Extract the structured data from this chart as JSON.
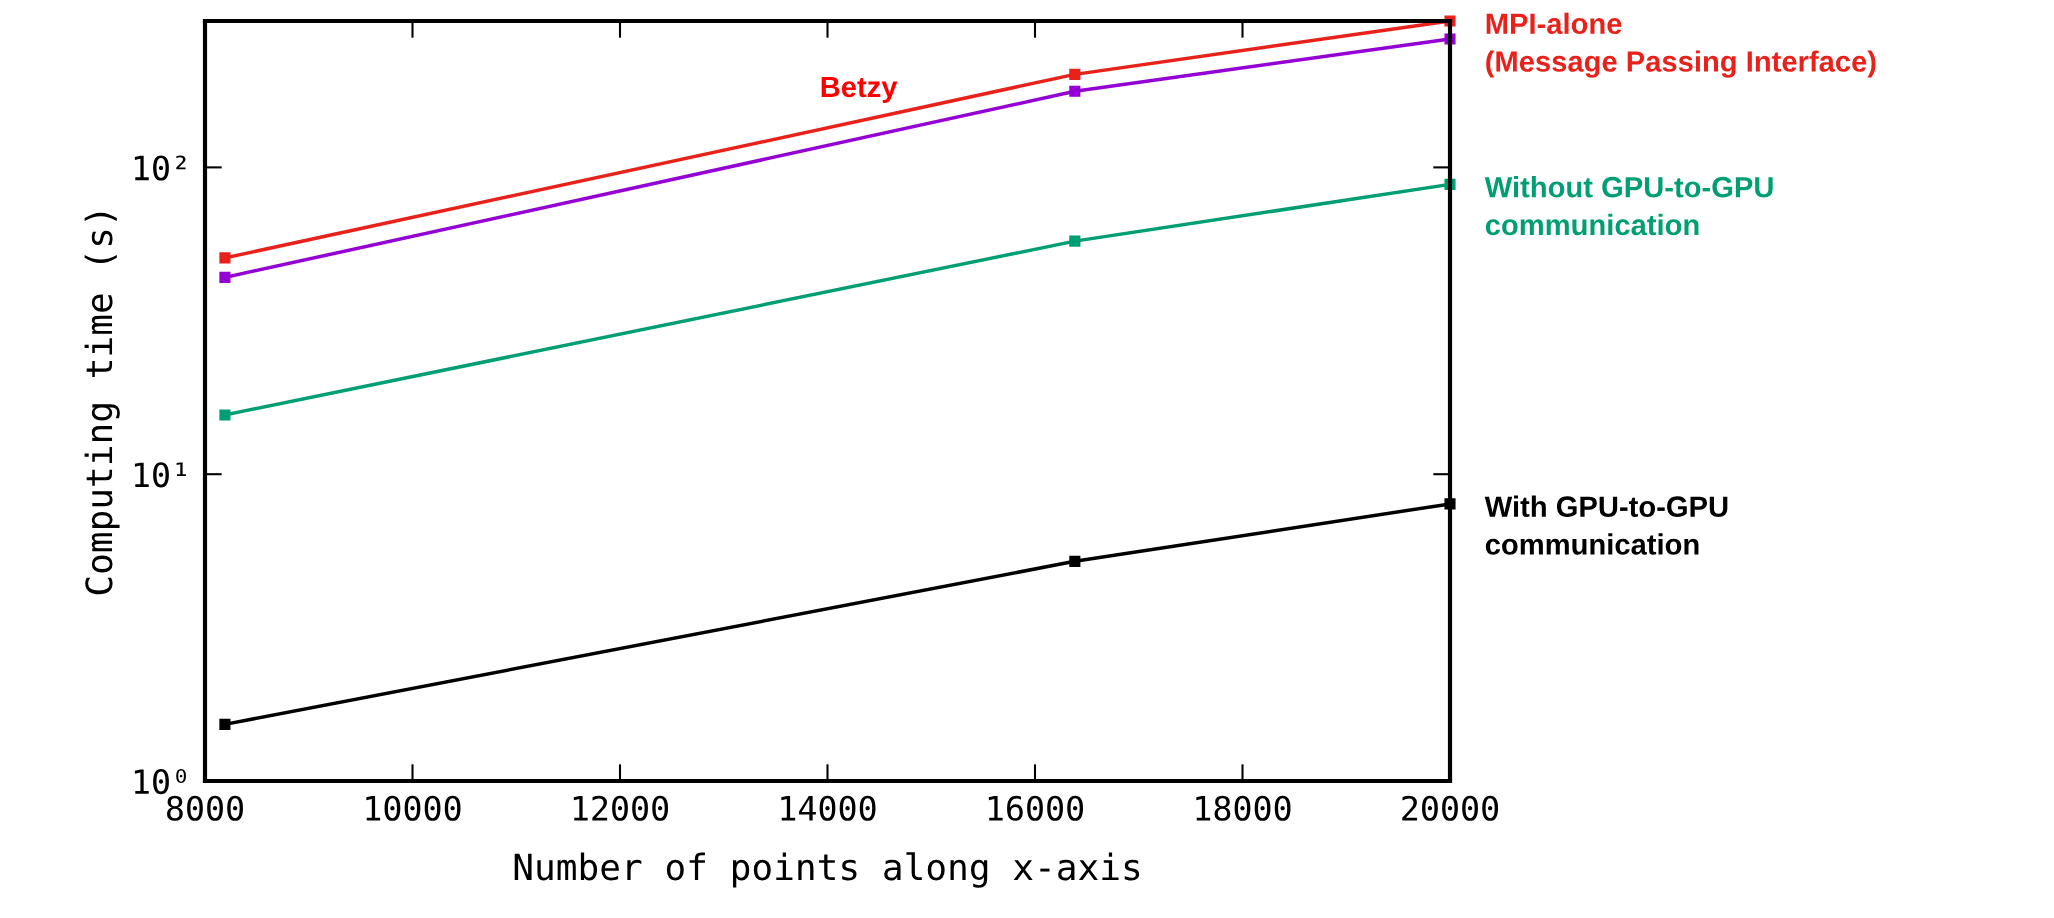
{
  "chart_data": {
    "type": "line",
    "xlabel": "Number of points along x-axis",
    "ylabel": "Computing time (s)",
    "x": [
      8192,
      16384,
      20000
    ],
    "series": [
      {
        "name": "MPI-alone\n(Message Passing Interface)",
        "color": "#e8211a",
        "values": [
          50.7,
          201,
          300
        ]
      },
      {
        "color": "#9400d3",
        "values": [
          43.8,
          177,
          262
        ]
      },
      {
        "name": "Without GPU-to-GPU\ncommunication",
        "color": "#009e73",
        "values": [
          15.6,
          57.5,
          88
        ]
      },
      {
        "name": "With GPU-to-GPU\ncommunication",
        "color": "#000000",
        "values": [
          1.53,
          5.2,
          8.0
        ]
      }
    ],
    "annotations": [
      "Betzy"
    ],
    "legend": "right",
    "log": "y",
    "xlim": [
      8000,
      20000
    ],
    "ylim": [
      1,
      300
    ],
    "xticks": [
      8000,
      10000,
      12000,
      14000,
      16000,
      18000,
      20000
    ],
    "yticks": [
      {
        "value": 1,
        "label": "10⁰"
      },
      {
        "value": 10,
        "label": "10¹"
      },
      {
        "value": 100,
        "label": "10²"
      }
    ],
    "marker": "square",
    "line_style": "solid"
  }
}
